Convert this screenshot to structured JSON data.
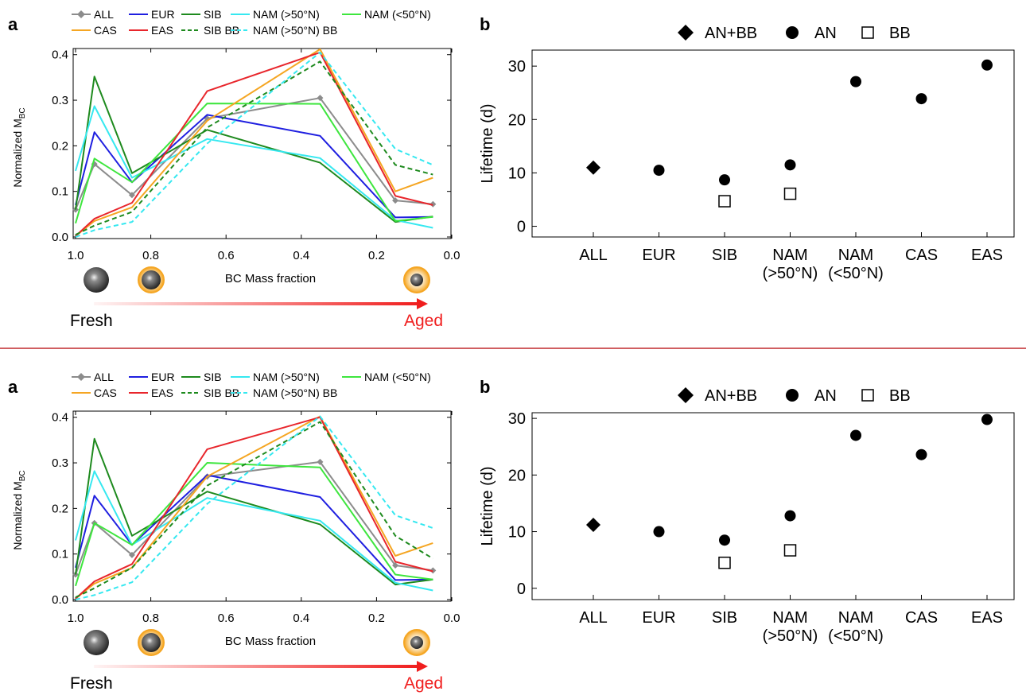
{
  "panels": [
    {
      "labels": {
        "a": "a",
        "b": "b"
      },
      "left": {
        "ylabel": "Normalized M",
        "ylabel_sub": "BC",
        "xlabel": "BC Mass fraction",
        "fresh": "Fresh",
        "aged": "Aged",
        "xticks": [
          "1.0",
          "0.8",
          "0.6",
          "0.4",
          "0.2",
          "0.0"
        ],
        "yticks": [
          "0.0",
          "0.1",
          "0.2",
          "0.3",
          "0.4"
        ]
      },
      "right": {
        "ylabel": "Lifetime (d)",
        "yticks": [
          "0",
          "10",
          "20",
          "30"
        ],
        "categories": [
          "ALL",
          "EUR",
          "SIB",
          "NAM\n(>50°N)",
          "NAM\n(<50°N)",
          "CAS",
          "EAS"
        ],
        "legend": [
          "AN+BB",
          "AN",
          "BB"
        ]
      }
    },
    {
      "labels": {
        "a": "a",
        "b": "b"
      },
      "left": {
        "ylabel": "Normalized M",
        "ylabel_sub": "BC",
        "xlabel": "BC Mass fraction",
        "fresh": "Fresh",
        "aged": "Aged",
        "xticks": [
          "1.0",
          "0.8",
          "0.6",
          "0.4",
          "0.2",
          "0.0"
        ],
        "yticks": [
          "0.0",
          "0.1",
          "0.2",
          "0.3",
          "0.4"
        ]
      },
      "right": {
        "ylabel": "Lifetime (d)",
        "yticks": [
          "0",
          "10",
          "20",
          "30"
        ],
        "categories": [
          "ALL",
          "EUR",
          "SIB",
          "NAM\n(>50°N)",
          "NAM\n(<50°N)",
          "CAS",
          "EAS"
        ],
        "legend": [
          "AN+BB",
          "AN",
          "BB"
        ]
      }
    }
  ],
  "colors": {
    "ALL": "#8c8c8c",
    "EUR": "#1f1fe0",
    "SIB": "#1e8a1e",
    "NAM (>50°N)": "#36e8f0",
    "NAM (<50°N)": "#3ee63e",
    "CAS": "#f5a623",
    "EAS": "#e8262c",
    "divider": "#c0282d",
    "arrow": "#f01e1e",
    "particle_coat": "#f5a623"
  },
  "chart_data": [
    {
      "type": "line",
      "xlabel": "BC Mass fraction",
      "ylabel": "Normalized MBC",
      "xlim": [
        1.0,
        0.0
      ],
      "ylim": [
        0,
        0.41
      ],
      "x": [
        1.0,
        0.95,
        0.85,
        0.65,
        0.35,
        0.15,
        0.05
      ],
      "series": [
        {
          "name": "ALL",
          "dash": false,
          "marker": true,
          "values": [
            0.06,
            0.16,
            0.092,
            0.26,
            0.305,
            0.08,
            0.072
          ]
        },
        {
          "name": "EUR",
          "dash": false,
          "values": [
            0.07,
            0.23,
            0.12,
            0.268,
            0.222,
            0.043,
            0.044
          ]
        },
        {
          "name": "SIB",
          "dash": false,
          "values": [
            0.06,
            0.352,
            0.14,
            0.235,
            0.163,
            0.033,
            0.045
          ]
        },
        {
          "name": "NAM (>50°N)",
          "dash": false,
          "values": [
            0.145,
            0.287,
            0.13,
            0.215,
            0.173,
            0.037,
            0.02
          ]
        },
        {
          "name": "NAM (<50°N)",
          "dash": false,
          "values": [
            0.03,
            0.172,
            0.12,
            0.293,
            0.292,
            0.035,
            0.044
          ]
        },
        {
          "name": "CAS",
          "dash": false,
          "values": [
            0.002,
            0.035,
            0.065,
            0.255,
            0.412,
            0.1,
            0.13
          ]
        },
        {
          "name": "EAS",
          "dash": false,
          "values": [
            0.002,
            0.04,
            0.075,
            0.32,
            0.405,
            0.09,
            0.07
          ]
        },
        {
          "name": "SIB BB",
          "dash": true,
          "values": [
            0.005,
            0.025,
            0.055,
            0.24,
            0.385,
            0.158,
            0.137
          ]
        },
        {
          "name": "NAM (>50°N) BB",
          "dash": true,
          "values": [
            0.0,
            0.015,
            0.033,
            0.205,
            0.405,
            0.193,
            0.158
          ]
        }
      ]
    },
    {
      "type": "scatter",
      "ylabel": "Lifetime (d)",
      "ylim": [
        -2,
        33
      ],
      "categories": [
        "ALL",
        "EUR",
        "SIB",
        "NAM (>50°N)",
        "NAM (<50°N)",
        "CAS",
        "EAS"
      ],
      "series": [
        {
          "name": "AN+BB",
          "marker": "diamond",
          "values": [
            11,
            null,
            null,
            null,
            null,
            null,
            null
          ]
        },
        {
          "name": "AN",
          "marker": "circle",
          "values": [
            null,
            10.5,
            8.7,
            11.5,
            27.1,
            23.9,
            30.2
          ]
        },
        {
          "name": "BB",
          "marker": "square-open",
          "values": [
            null,
            null,
            4.7,
            6.1,
            null,
            null,
            null
          ]
        }
      ]
    },
    {
      "type": "line",
      "xlabel": "BC Mass fraction",
      "ylabel": "Normalized MBC",
      "xlim": [
        1.0,
        0.0
      ],
      "ylim": [
        0,
        0.41
      ],
      "x": [
        1.0,
        0.95,
        0.85,
        0.65,
        0.35,
        0.15,
        0.05
      ],
      "series": [
        {
          "name": "ALL",
          "dash": false,
          "marker": true,
          "values": [
            0.055,
            0.168,
            0.098,
            0.27,
            0.302,
            0.075,
            0.064
          ]
        },
        {
          "name": "EUR",
          "dash": false,
          "values": [
            0.07,
            0.228,
            0.12,
            0.273,
            0.225,
            0.043,
            0.044
          ]
        },
        {
          "name": "SIB",
          "dash": false,
          "values": [
            0.055,
            0.353,
            0.14,
            0.237,
            0.165,
            0.033,
            0.044
          ]
        },
        {
          "name": "NAM (>50°N)",
          "dash": false,
          "values": [
            0.13,
            0.282,
            0.12,
            0.223,
            0.173,
            0.037,
            0.02
          ]
        },
        {
          "name": "NAM (<50°N)",
          "dash": false,
          "values": [
            0.03,
            0.168,
            0.12,
            0.3,
            0.29,
            0.055,
            0.044
          ]
        },
        {
          "name": "CAS",
          "dash": false,
          "values": [
            0.002,
            0.035,
            0.07,
            0.27,
            0.402,
            0.096,
            0.124
          ]
        },
        {
          "name": "EAS",
          "dash": false,
          "values": [
            0.002,
            0.04,
            0.078,
            0.33,
            0.4,
            0.083,
            0.062
          ]
        },
        {
          "name": "SIB BB",
          "dash": true,
          "values": [
            0.005,
            0.025,
            0.07,
            0.25,
            0.39,
            0.14,
            0.09
          ]
        },
        {
          "name": "NAM (>50°N) BB",
          "dash": true,
          "values": [
            0.0,
            0.01,
            0.038,
            0.21,
            0.402,
            0.185,
            0.157
          ]
        }
      ]
    },
    {
      "type": "scatter",
      "ylabel": "Lifetime (d)",
      "ylim": [
        -2,
        31
      ],
      "categories": [
        "ALL",
        "EUR",
        "SIB",
        "NAM (>50°N)",
        "NAM (<50°N)",
        "CAS",
        "EAS"
      ],
      "series": [
        {
          "name": "AN+BB",
          "marker": "diamond",
          "values": [
            11.2,
            null,
            null,
            null,
            null,
            null,
            null
          ]
        },
        {
          "name": "AN",
          "marker": "circle",
          "values": [
            null,
            10.0,
            8.5,
            12.8,
            27.0,
            23.6,
            29.8
          ]
        },
        {
          "name": "BB",
          "marker": "square-open",
          "values": [
            null,
            null,
            4.5,
            6.7,
            null,
            null,
            null
          ]
        }
      ]
    }
  ]
}
